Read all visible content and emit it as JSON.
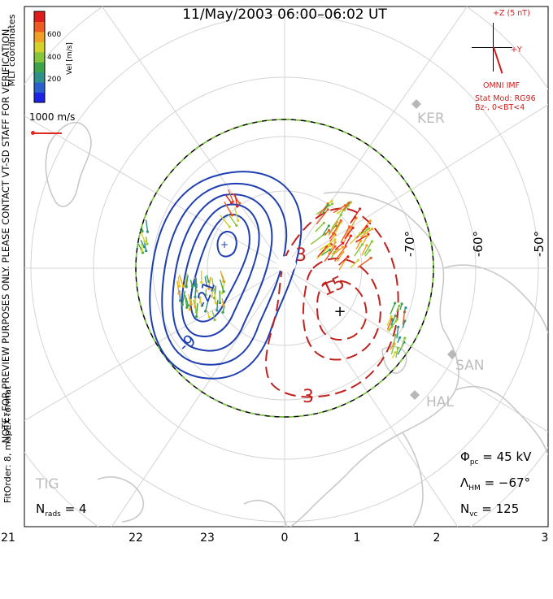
{
  "title": "11/May/2003 06:00–06:02 UT",
  "side_note_left": "NOTE: FOR PREVIEW PURPOSES ONLY. PLEASE CONTACT VT-SD STAFF FOR VERIFICATION.",
  "side_note_fit": "FitOrder: 8, mapEX format",
  "coords_label": "MLT coordinates",
  "colorbar": {
    "label": "Vel [m/s]",
    "ticks": [
      "600",
      "400",
      "200"
    ],
    "colors": [
      "#1a23e6",
      "#2a5fd0",
      "#2f8f8a",
      "#3da34a",
      "#86c63a",
      "#d6d22c",
      "#f0a024",
      "#ee5a1f",
      "#e01b1b"
    ]
  },
  "scale_vector": {
    "label": "1000 m/s",
    "color": "#e0281e"
  },
  "imf": {
    "z_label": "+Z (5 nT)",
    "y_label": "+Y",
    "source": "OMNI IMF",
    "model": "Stat Mod: RG96",
    "condition": "Bz-, 0<BT<4",
    "color": "#d21c1c"
  },
  "stations": [
    "KER",
    "SAN",
    "HAL",
    "TIG"
  ],
  "lat_labels": [
    "-70°",
    "-60°",
    "-50°"
  ],
  "mlt_labels": [
    "21",
    "22",
    "23",
    "0",
    "1",
    "2",
    "3"
  ],
  "contour_labels": {
    "negative": [
      "-9",
      "-21"
    ],
    "positive": [
      "3",
      "15",
      "3"
    ]
  },
  "stats": {
    "phi_symbol": "Φ",
    "phi_sub": "pc",
    "phi_value": " = 45 kV",
    "lambda_symbol": "Λ",
    "lambda_sub": "HM",
    "lambda_value": " = −67°",
    "nvc_symbol": "N",
    "nvc_sub": "vc",
    "nvc_value": " = 125",
    "nrads_symbol": "N",
    "nrads_sub": "rads",
    "nrads_value": " = 4"
  },
  "cell_colors": {
    "negative": "#3a48e0",
    "positive": "#e05050"
  }
}
